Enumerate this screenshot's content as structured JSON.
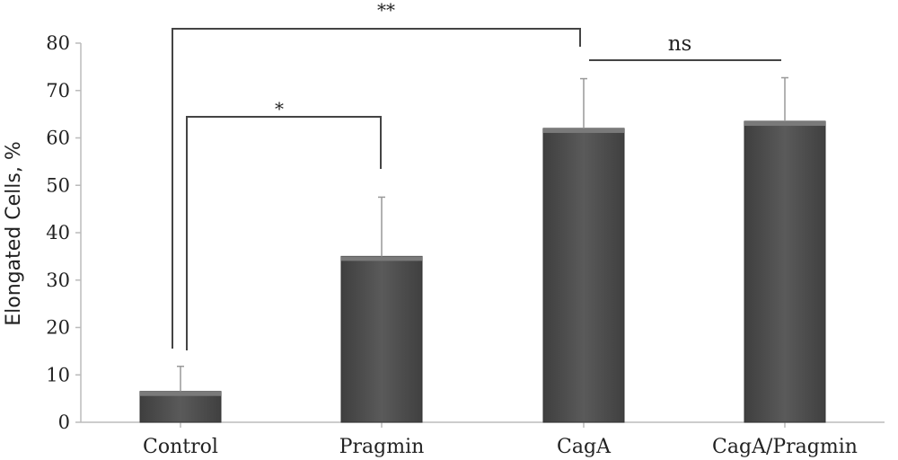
{
  "chart_data": {
    "type": "bar",
    "title": "",
    "xlabel": "",
    "ylabel": "Elongated Cells, %",
    "ylim": [
      0,
      80
    ],
    "yticks": [
      0,
      10,
      20,
      30,
      40,
      50,
      60,
      70,
      80
    ],
    "categories": [
      "Control",
      "Pragmin",
      "CagA",
      "CagA/Pragmin"
    ],
    "series": [
      {
        "values": [
          6.5,
          35,
          62,
          63.5
        ],
        "errors": [
          5.3,
          12.5,
          10.5,
          9.2
        ]
      }
    ],
    "bar_color": "#555555",
    "grid": false,
    "legend": "none",
    "annotations": [
      {
        "label": "**",
        "from": "Control",
        "to": "CagA"
      },
      {
        "label": "*",
        "from": "Control",
        "to": "Pragmin"
      },
      {
        "label": "ns",
        "from": "CagA",
        "to": "CagA/Pragmin"
      }
    ]
  }
}
